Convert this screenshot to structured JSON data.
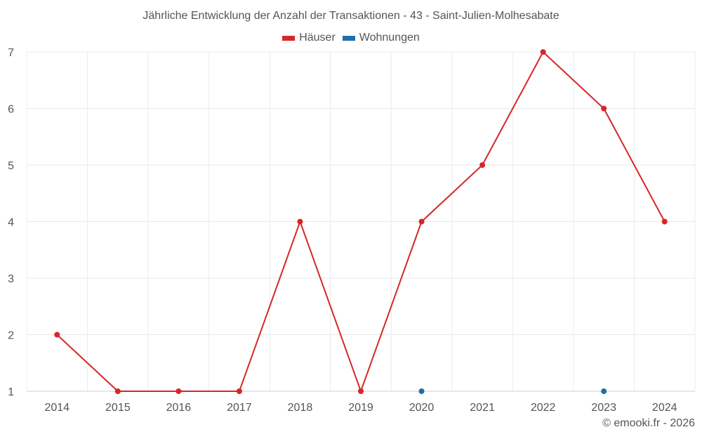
{
  "title": "Jährliche Entwicklung der Anzahl der Transaktionen - 43 - Saint-Julien-Molhesabate",
  "legend": [
    {
      "label": "Häuser",
      "color": "#d62728"
    },
    {
      "label": "Wohnungen",
      "color": "#1f6fa8"
    }
  ],
  "credit": "© emooki.fr - 2026",
  "chart_data": {
    "type": "line",
    "title": "Jährliche Entwicklung der Anzahl der Transaktionen - 43 - Saint-Julien-Molhesabate",
    "xlabel": "",
    "ylabel": "",
    "categories": [
      "2014",
      "2015",
      "2016",
      "2017",
      "2018",
      "2019",
      "2020",
      "2021",
      "2022",
      "2023",
      "2024"
    ],
    "series": [
      {
        "name": "Häuser",
        "color": "#d62728",
        "values": [
          2,
          1,
          1,
          1,
          4,
          1,
          4,
          5,
          7,
          6,
          4
        ]
      },
      {
        "name": "Wohnungen",
        "color": "#1f6fa8",
        "values": [
          null,
          null,
          null,
          null,
          null,
          null,
          1,
          null,
          null,
          1,
          null
        ]
      }
    ],
    "ylim": [
      1,
      7
    ],
    "yticks": [
      1,
      2,
      3,
      4,
      5,
      6,
      7
    ],
    "grid": true,
    "legend_position": "top"
  }
}
